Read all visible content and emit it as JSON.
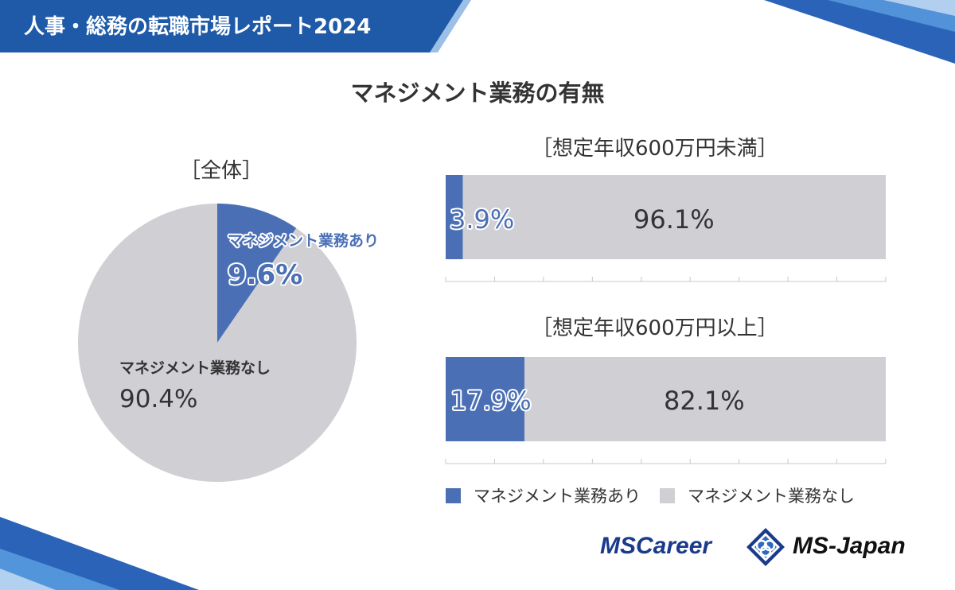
{
  "header": {
    "report_title": "人事・総務の転職市場レポート2024"
  },
  "main_title": "マネジメント業務の有無",
  "colors": {
    "with": "#4a6fb5",
    "without": "#cfcfd4",
    "banner": "#1e5aa8"
  },
  "pie": {
    "section_label": "［全体］",
    "with_label": "マネジメント業務あり",
    "with_value": "9.6%",
    "without_label": "マネジメント業務なし",
    "without_value": "90.4%"
  },
  "bars": {
    "under_label": "［想定年収600万円未満］",
    "under_with": "3.9%",
    "under_without": "96.1%",
    "over_label": "［想定年収600万円以上］",
    "over_with": "17.9%",
    "over_without": "82.1%"
  },
  "legend": {
    "with": "マネジメント業務あり",
    "without": "マネジメント業務なし"
  },
  "logos": {
    "mscareer": "MSCareer",
    "msjapan": "MS-Japan"
  },
  "chart_data": [
    {
      "type": "pie",
      "title": "［全体］",
      "categories": [
        "マネジメント業務あり",
        "マネジメント業務なし"
      ],
      "values": [
        9.6,
        90.4
      ],
      "colors": [
        "#4a6fb5",
        "#cfcfd4"
      ]
    },
    {
      "type": "bar",
      "orientation": "horizontal-stacked-100",
      "categories": [
        "［想定年収600万円未満］",
        "［想定年収600万円以上］"
      ],
      "series": [
        {
          "name": "マネジメント業務あり",
          "values": [
            3.9,
            17.9
          ],
          "color": "#4a6fb5"
        },
        {
          "name": "マネジメント業務なし",
          "values": [
            96.1,
            82.1
          ],
          "color": "#cfcfd4"
        }
      ],
      "xlim": [
        0,
        100
      ],
      "legend": "bottom"
    }
  ]
}
